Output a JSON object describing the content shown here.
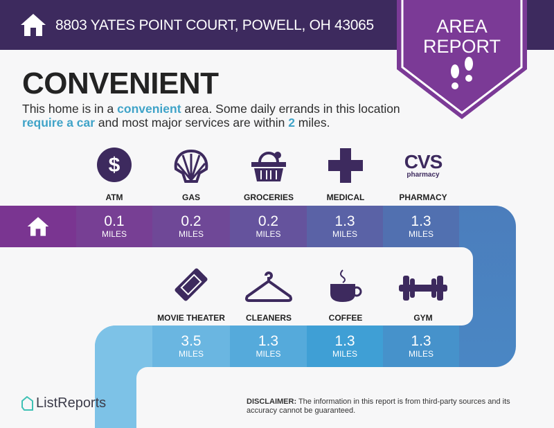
{
  "header": {
    "address": "8803 YATES POINT COURT, POWELL, OH 43065",
    "badge_line1": "AREA",
    "badge_line2": "REPORT"
  },
  "colors": {
    "header": "#3d2a5e",
    "badge": "#7b3a96",
    "highlight": "#3fa3c8",
    "icon": "#3d2a5e"
  },
  "summary": {
    "title": "CONVENIENT",
    "text_1": "This home is in a ",
    "hl_1": "convenient",
    "text_2": " area. Some daily errands in this location ",
    "hl_2": "require a car",
    "text_3": " and most major services are within ",
    "hl_3": "2",
    "text_4": " miles."
  },
  "row1": [
    {
      "label": "ATM",
      "icon": "dollar-icon",
      "distance": "0.1",
      "unit": "MILES"
    },
    {
      "label": "GAS",
      "icon": "shell-icon",
      "distance": "0.2",
      "unit": "MILES"
    },
    {
      "label": "GROCERIES",
      "icon": "basket-icon",
      "distance": "0.2",
      "unit": "MILES"
    },
    {
      "label": "MEDICAL",
      "icon": "cross-icon",
      "distance": "1.3",
      "unit": "MILES"
    },
    {
      "label": "PHARMACY",
      "icon": "cvs-logo",
      "logo_text": "CVS",
      "logo_sub": "pharmacy",
      "distance": "1.3",
      "unit": "MILES"
    }
  ],
  "row2": [
    {
      "label": "MOVIE THEATER",
      "icon": "ticket-icon",
      "distance": "3.5",
      "unit": "MILES"
    },
    {
      "label": "CLEANERS",
      "icon": "hanger-icon",
      "distance": "1.3",
      "unit": "MILES"
    },
    {
      "label": "COFFEE",
      "icon": "coffee-icon",
      "distance": "1.3",
      "unit": "MILES"
    },
    {
      "label": "GYM",
      "icon": "dumbbell-icon",
      "distance": "1.3",
      "unit": "MILES"
    }
  ],
  "footer": {
    "logo": "ListReports",
    "disclaimer_label": "DISCLAIMER:",
    "disclaimer_text": " The information in this report is from third-party sources and its accuracy cannot be guaranteed."
  }
}
